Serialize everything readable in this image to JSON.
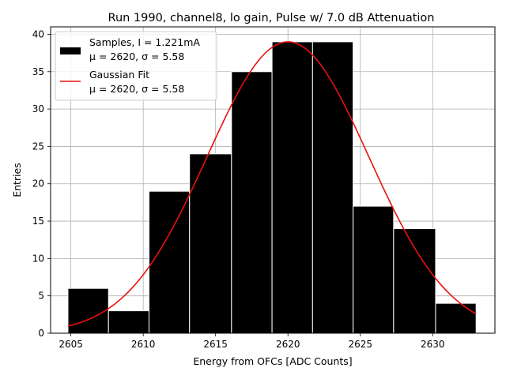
{
  "chart_data": {
    "type": "bar",
    "title": "Run 1990, channel8, lo gain, Pulse w/ 7.0 dB Attenuation",
    "xlabel": "Energy from OFCs [ADC Counts]",
    "ylabel": "Entries",
    "xlim": [
      2603.6,
      2634.3
    ],
    "ylim": [
      0,
      41
    ],
    "grid": true,
    "legend_position": "top-left",
    "x_ticks": [
      2605,
      2610,
      2615,
      2620,
      2625,
      2630
    ],
    "y_ticks": [
      0,
      5,
      10,
      15,
      20,
      25,
      30,
      35,
      40
    ],
    "bins": [
      {
        "left": 2604.8,
        "right": 2607.6,
        "count": 6
      },
      {
        "left": 2607.6,
        "right": 2610.4,
        "count": 3
      },
      {
        "left": 2610.4,
        "right": 2613.2,
        "count": 19
      },
      {
        "left": 2613.2,
        "right": 2616.1,
        "count": 24
      },
      {
        "left": 2616.1,
        "right": 2618.9,
        "count": 35
      },
      {
        "left": 2618.9,
        "right": 2621.7,
        "count": 39
      },
      {
        "left": 2621.7,
        "right": 2624.5,
        "count": 39
      },
      {
        "left": 2624.5,
        "right": 2627.3,
        "count": 17
      },
      {
        "left": 2627.3,
        "right": 2630.2,
        "count": 14
      },
      {
        "left": 2630.2,
        "right": 2633.0,
        "count": 4
      }
    ],
    "series": [
      {
        "name": "Samples",
        "kind": "histogram",
        "legend_label": [
          "Samples, I = 1.221mA",
          "μ = 2620, σ = 5.58"
        ],
        "color": "#000000",
        "edge_color": "#ffffff"
      },
      {
        "name": "Gaussian Fit",
        "kind": "line",
        "legend_label": [
          "Gaussian Fit",
          "μ = 2620, σ = 5.58"
        ],
        "color": "#e8110f",
        "amplitude": 39,
        "mu": 2620,
        "sigma": 5.58,
        "x_range": [
          2604.8,
          2633.0
        ]
      }
    ]
  }
}
